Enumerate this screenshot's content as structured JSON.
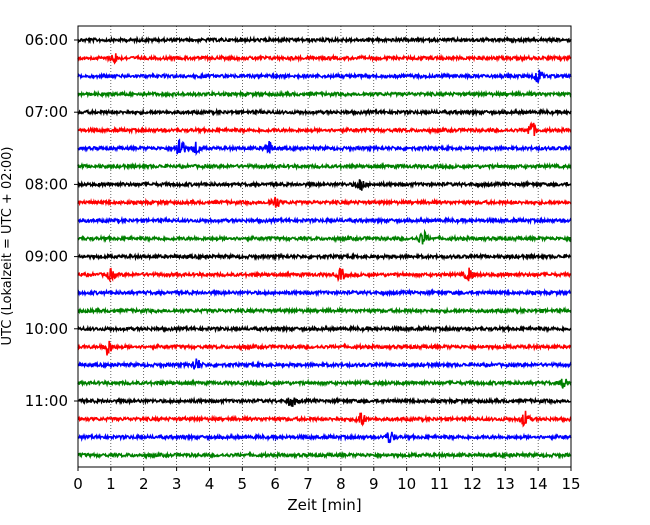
{
  "chart_data": {
    "type": "line",
    "title": "",
    "xlabel": "Zeit  [min]",
    "ylabel": "UTC (Lokalzeit = UTC + 02:00)",
    "xlim": [
      0,
      15
    ],
    "x_ticks": [
      "0",
      "1",
      "2",
      "3",
      "4",
      "5",
      "6",
      "7",
      "8",
      "9",
      "10",
      "11",
      "12",
      "13",
      "14",
      "15"
    ],
    "y_tick_labels": [
      "06:00",
      "07:00",
      "08:00",
      "09:00",
      "10:00",
      "11:00"
    ],
    "trace_interval_minutes": 15,
    "trace_start": "06:00",
    "trace_count": 24,
    "trace_colors": [
      "#000000",
      "#ff0000",
      "#0000ff",
      "#008000"
    ],
    "vertical_grid": "dotted",
    "events": [
      {
        "trace": 1,
        "x": 1.1,
        "amp": 1.6
      },
      {
        "trace": 2,
        "x": 14.0,
        "amp": 2.2
      },
      {
        "trace": 5,
        "x": 13.8,
        "amp": 2.6
      },
      {
        "trace": 6,
        "x": 3.1,
        "amp": 4.0
      },
      {
        "trace": 6,
        "x": 3.6,
        "amp": 1.8
      },
      {
        "trace": 6,
        "x": 5.8,
        "amp": 2.2
      },
      {
        "trace": 8,
        "x": 8.6,
        "amp": 2.0
      },
      {
        "trace": 9,
        "x": 6.0,
        "amp": 2.0
      },
      {
        "trace": 11,
        "x": 10.5,
        "amp": 2.2
      },
      {
        "trace": 13,
        "x": 1.0,
        "amp": 1.6
      },
      {
        "trace": 13,
        "x": 8.0,
        "amp": 1.8
      },
      {
        "trace": 13,
        "x": 11.9,
        "amp": 2.0
      },
      {
        "trace": 17,
        "x": 0.9,
        "amp": 2.6
      },
      {
        "trace": 18,
        "x": 3.6,
        "amp": 2.0
      },
      {
        "trace": 19,
        "x": 14.8,
        "amp": 1.6
      },
      {
        "trace": 20,
        "x": 6.5,
        "amp": 1.8
      },
      {
        "trace": 21,
        "x": 8.6,
        "amp": 2.4
      },
      {
        "trace": 21,
        "x": 13.6,
        "amp": 2.4
      },
      {
        "trace": 22,
        "x": 9.5,
        "amp": 2.0
      }
    ]
  }
}
